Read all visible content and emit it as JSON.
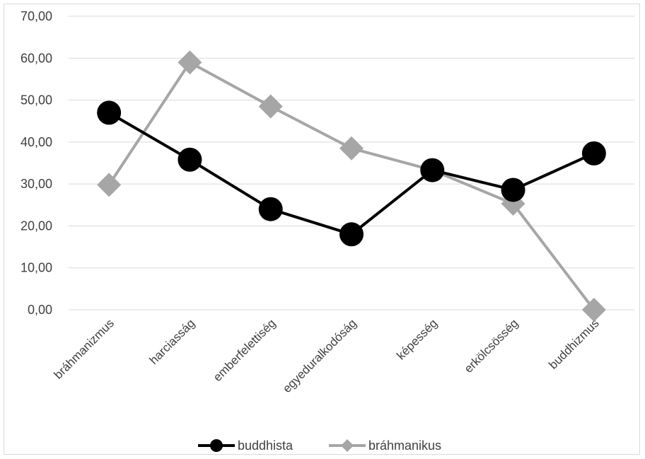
{
  "chart_data": {
    "type": "line",
    "title": "",
    "xlabel": "",
    "ylabel": "",
    "categories": [
      "bráhmanizmus",
      "harciasság",
      "emberfelettiség",
      "egyeduralkodóság",
      "képesség",
      "erkölcsösség",
      "buddhizmus"
    ],
    "ylim": [
      0,
      70
    ],
    "yticks": [
      "0,00",
      "10,00",
      "20,00",
      "30,00",
      "40,00",
      "50,00",
      "60,00",
      "70,00"
    ],
    "grid": true,
    "legend_position": "bottom",
    "series": [
      {
        "name": "buddhista",
        "color": "#000000",
        "marker": "circle",
        "values": [
          47.0,
          35.8,
          24.0,
          18.0,
          33.3,
          28.6,
          37.3
        ]
      },
      {
        "name": "bráhmanikus",
        "color": "#a6a6a6",
        "marker": "diamond",
        "values": [
          29.8,
          59.0,
          48.5,
          38.5,
          33.3,
          25.3,
          0.0
        ]
      }
    ]
  }
}
